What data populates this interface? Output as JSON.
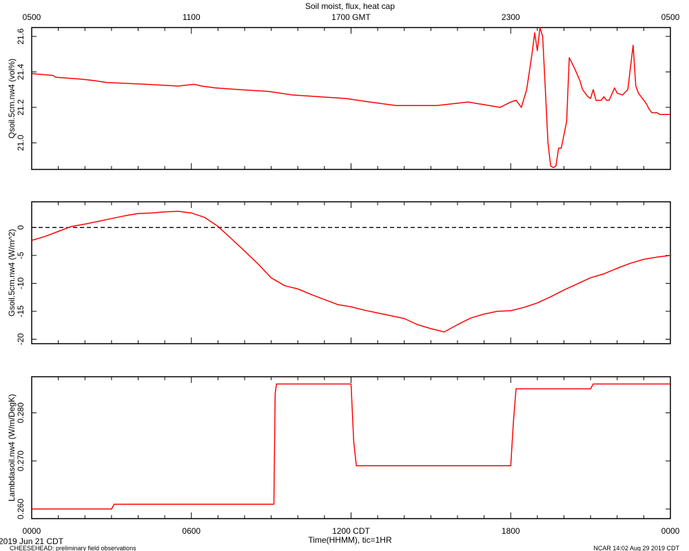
{
  "page": {
    "title": "Soil moist, flux, heat cap",
    "date_label": "2019 Jun 21 CDT",
    "footer_left": "CHEESEHEAD: preliminary field observations",
    "footer_right": "NCAR 14:02 Aug 29 2019 CDT",
    "xlabel_bottom": "Time(HHMM), tic=1HR"
  },
  "colors": {
    "series": "#ff0000",
    "axis": "#000000",
    "background": "#ffffff"
  },
  "chart_data": [
    {
      "type": "line",
      "ylabel": "Qsoil.5cm.nw4 (vol%)",
      "top_ticks": [
        "0500",
        "1100",
        "1700 GMT",
        "2300",
        "0500"
      ],
      "xlim": [
        0,
        24
      ],
      "ylim": [
        20.85,
        21.65
      ],
      "yticks": [
        21.0,
        21.2,
        21.4,
        21.6
      ],
      "ytick_labels": [
        "21.0",
        "21.2",
        "21.4",
        "21.6"
      ],
      "x": [
        0,
        0.8,
        0.9,
        1.8,
        2.4,
        2.8,
        4.3,
        5.5,
        6.1,
        6.4,
        6.9,
        7.8,
        8.9,
        9.8,
        11.8,
        12.7,
        13.7,
        15.2,
        16.4,
        17.6,
        18.0,
        18.2,
        18.4,
        18.6,
        18.8,
        18.9,
        19.0,
        19.1,
        19.2,
        19.3,
        19.4,
        19.5,
        19.6,
        19.7,
        19.75,
        19.8,
        19.9,
        20.1,
        20.2,
        20.4,
        20.6,
        20.7,
        20.8,
        20.9,
        21.0,
        21.1,
        21.2,
        21.4,
        21.5,
        21.55,
        21.6,
        21.7,
        21.9,
        22.0,
        22.2,
        22.4,
        22.6,
        22.7,
        22.8,
        22.9,
        23.0,
        23.1,
        23.2,
        23.3,
        23.4,
        23.5,
        23.6,
        23.9,
        24.0
      ],
      "y": [
        21.39,
        21.38,
        21.37,
        21.36,
        21.35,
        21.34,
        21.33,
        21.32,
        21.33,
        21.32,
        21.31,
        21.3,
        21.29,
        21.27,
        21.25,
        21.23,
        21.21,
        21.21,
        21.23,
        21.2,
        21.23,
        21.24,
        21.2,
        21.3,
        21.5,
        21.62,
        21.52,
        21.65,
        21.6,
        21.3,
        21.0,
        20.87,
        20.86,
        20.87,
        20.92,
        20.97,
        20.97,
        21.12,
        21.48,
        21.42,
        21.35,
        21.3,
        21.28,
        21.26,
        21.25,
        21.3,
        21.24,
        21.24,
        21.26,
        21.25,
        21.24,
        21.24,
        21.31,
        21.28,
        21.27,
        21.3,
        21.55,
        21.32,
        21.28,
        21.26,
        21.24,
        21.22,
        21.19,
        21.17,
        21.17,
        21.17,
        21.16,
        21.16,
        21.16
      ]
    },
    {
      "type": "line",
      "ylabel": "Gsoil.5cm.nw4 (W/m^2)",
      "xlim": [
        0,
        24
      ],
      "ylim": [
        -20.8,
        4.6
      ],
      "yticks": [
        -20,
        -15,
        -10,
        -5,
        0
      ],
      "ytick_labels": [
        "-20",
        "-15",
        "-10",
        "-5",
        "0"
      ],
      "zero_line": true,
      "x": [
        0,
        0.5,
        1.0,
        1.5,
        2.0,
        2.5,
        3.0,
        3.5,
        4.0,
        4.5,
        5.0,
        5.5,
        6.0,
        6.5,
        7.0,
        7.5,
        8.0,
        8.5,
        9.0,
        9.5,
        10.0,
        10.5,
        11.0,
        11.5,
        12.0,
        12.5,
        13.0,
        13.5,
        14.0,
        14.5,
        15.0,
        15.5,
        16.0,
        16.5,
        17.0,
        17.5,
        18.0,
        18.5,
        19.0,
        19.5,
        20.0,
        20.5,
        21.0,
        21.5,
        22.0,
        22.5,
        23.0,
        23.5,
        24.0
      ],
      "y": [
        -2.3,
        -1.6,
        -0.7,
        0.2,
        0.6,
        1.1,
        1.6,
        2.1,
        2.5,
        2.6,
        2.8,
        2.9,
        2.6,
        1.8,
        0.2,
        -2.0,
        -4.2,
        -6.5,
        -9.0,
        -10.4,
        -11.0,
        -12.0,
        -12.9,
        -13.8,
        -14.2,
        -14.8,
        -15.3,
        -15.8,
        -16.3,
        -17.4,
        -18.1,
        -18.7,
        -17.4,
        -16.2,
        -15.5,
        -15.0,
        -14.9,
        -14.3,
        -13.5,
        -12.4,
        -11.2,
        -10.1,
        -9.0,
        -8.3,
        -7.3,
        -6.4,
        -5.7,
        -5.3,
        -5.0
      ]
    },
    {
      "type": "line",
      "ylabel": "Lambdasoil.nw4 (W/m/DegK)",
      "xlim": [
        0,
        24
      ],
      "ylim": [
        0.258,
        0.2875
      ],
      "yticks": [
        0.26,
        0.27,
        0.28
      ],
      "ytick_labels": [
        "0.260",
        "0.270",
        "0.280"
      ],
      "bottom_ticks": [
        "0000",
        "0600",
        "1200 CDT",
        "1800",
        "0000"
      ],
      "x": [
        0,
        3.0,
        3.1,
        9.1,
        9.15,
        9.2,
        12.0,
        12.1,
        12.2,
        18.0,
        18.1,
        18.2,
        21.0,
        21.1,
        24.0
      ],
      "y": [
        0.26,
        0.26,
        0.261,
        0.261,
        0.284,
        0.286,
        0.286,
        0.274,
        0.269,
        0.269,
        0.278,
        0.285,
        0.285,
        0.286,
        0.286
      ]
    }
  ]
}
